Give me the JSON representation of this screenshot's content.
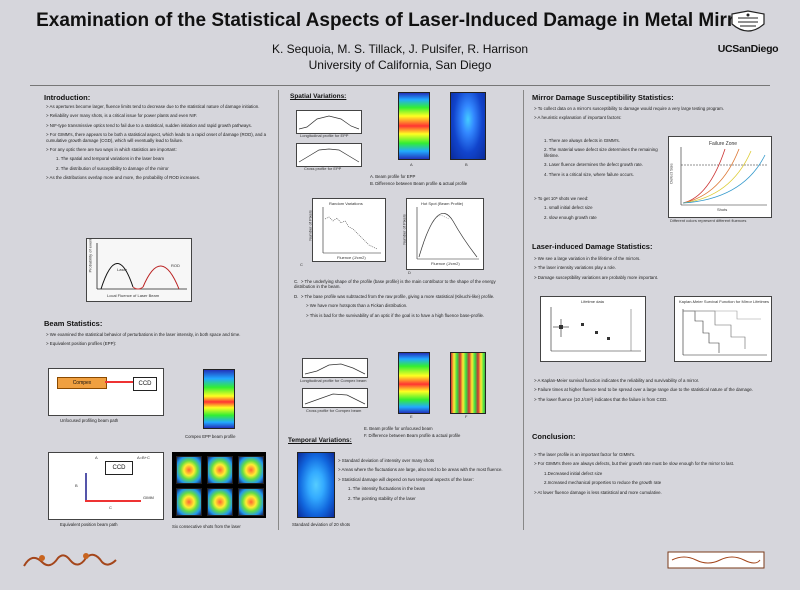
{
  "header": {
    "title": "Examination of the Statistical Aspects of Laser-Induced Damage in Metal Mirrors",
    "authors": "K. Sequoia, M. S. Tillack, J. Pulsifer, R. Harrison",
    "affiliation": "University of California, San Diego",
    "logo_text": "UCSanDiego"
  },
  "intro": {
    "heading": "Introduction:",
    "bullets": [
      "As apertures become larger, fluence limits tend to decrease due to the statistical nature of damage initiation.",
      "Reliability over many shots, is a critical issue for power plants and even NIF.",
      "NIF-type transmissive optics tend to fail due to a statistical, sudden initiation and rapid growth pathways.",
      "For GIMM's, there appears to be both a statistical aspect, which leads to a rapid onset of damage (ROD), and a cumulative growth damage (CGD), which will eventually lead to failure.",
      "For any optic there are two ways in which statistics are important:"
    ],
    "sub": [
      "1.   The spatial and temporal variations in the laser beam",
      "2.   The distribution of susceptibility to damage of the mirror"
    ],
    "last": "As the distributions overlap more and more, the probability of ROD increases.",
    "fig": {
      "ylabel": "Probability of event",
      "xlabel": "Local Fluence of Laser Beam",
      "left": "Laser",
      "right": "ROD"
    }
  },
  "beam": {
    "heading": "Beam Statistics:",
    "bullets": [
      "We examined the statistical behavior of perturbations in the laser intensity, in both space and time.",
      "Equivalent position profiles (EPP):"
    ],
    "fig1": {
      "compex": "Compex",
      "ccd": "CCD",
      "caption": "Unfocused profiling beam path",
      "beam_caption": "Compex EPP beam profile"
    },
    "fig2": {
      "ccd": "CCD",
      "a": "A",
      "b": "B",
      "c": "C",
      "ab": "A=B+C",
      "gimm": "GIMM",
      "caption": "Equivalent position beam path",
      "shots_caption": "Six consecutive shots from the laser"
    }
  },
  "spatial": {
    "heading": "Spatial Variations:",
    "plot1": "Longitudinal profile for EPP",
    "plot2": "Cross profile for EPP",
    "a": "A",
    "bb": "B",
    "cap_a": "A.  Beam profile for EPP",
    "cap_b": "B.  Difference between Beam profile & actual profile",
    "plotC_title": "Random Variations",
    "plotC_x": "Fluence (J/cm2)",
    "plotC_y": "Number of Pixels",
    "plotD_title": "Hot Spot (Beam Profile)",
    "plotD_x": "Fluence (J/cm2)",
    "plotD_y": "Number of Pixels",
    "c": "C",
    "d": "D",
    "cap_c": "The underlying shape of the profile (base profile) is the main contributor to the shape of the energy distribution in the beam.",
    "cap_d": "The base profile was subtracted from the raw profile, giving a more statistical (Kikuchi-like) profile.",
    "cap_d2": "We have more hotspots than a Fickan distribution.",
    "cap_d3": "This is bad for the survivability of an optic if the goal is to have a high fluence base-profile.",
    "plot3": "Longitudinal profile for Compex beam",
    "plot4": "Cross profile for Compex beam",
    "e": "E",
    "f": "F",
    "cap_e": "E.  Beam profile for unfocused beam",
    "cap_f": "F.  Difference between Beam profile & actual profile"
  },
  "temporal": {
    "heading": "Temporal Variations:",
    "bullets": [
      "Standard deviation of intensity over many shots",
      "Areas where the fluctuations are large, also tend to be areas with the most fluence.",
      "Statistical damage will depend on two temporal aspects of the laser:"
    ],
    "sub": [
      "1. The intensity fluctuations in the beam",
      "2. The pointing stability of the laser"
    ],
    "caption": "Standard deviation of 20 shots"
  },
  "mirror": {
    "heading": "Mirror Damage Susceptibility Statistics:",
    "bullets": [
      "To collect data on a mirror's susceptibility to damage would require a very large testing program.",
      "A heuristic explanation of important factors:"
    ],
    "sub": [
      "1.  There are always defects in GIMM's.",
      "2.  The material wave defect size determines the remaining lifetime.",
      "3.  Laser fluence determines the defect growth rate.",
      "4.  There is a critical size, where failure occurs."
    ],
    "last": "To get 10⁸ shots we need:",
    "sub2": [
      "1.  small initial defect size",
      "2.  slow enough growth rate"
    ],
    "fig": {
      "title": "Failure Zone",
      "ylabel": "Defect Size",
      "xlabel": "Shots",
      "caption": "Different colors represent different fluences"
    }
  },
  "lids": {
    "heading": "Laser-induced Damage Statistics:",
    "bullets": [
      "We see a large variation in the lifetime of the mirrors.",
      "The laser intensity variations play a role.",
      "Damage susceptibility variations are probably more important."
    ],
    "plot1_title": "Lifetime data",
    "plot2_title": "Kaplan-Meier Survival Function for Mirror Lifetimes",
    "after": [
      "A Kaplan-Meier survival function indicates the reliability and survivability of a mirror.",
      "Failure times at higher fluence tend to be spread over a large range due to the statistical nature of the damage.",
      "The lower fluence (10 J/cm²) indicates that the failure is from CGD."
    ]
  },
  "conclusion": {
    "heading": "Conclusion:",
    "bullets": [
      "The laser profile is an important factor for GIMM's.",
      "For GIMM's there are always defects, but their growth rate must be slow enough for the mirror to last."
    ],
    "sub": [
      "1.Decreased initial defect size",
      "2.Increased mechanical properties to reduce the growth rate"
    ],
    "last": "At lower fluence damage is less statistical and more cumulative."
  },
  "colors": {
    "background": "#d6d6dc",
    "heading": "#111111",
    "text": "#222222"
  }
}
